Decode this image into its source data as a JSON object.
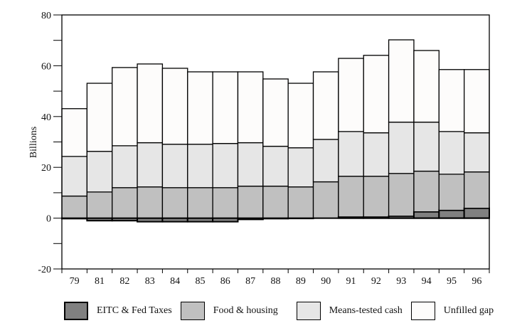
{
  "chart_data": {
    "type": "bar",
    "stacked": true,
    "title": "",
    "xlabel": "",
    "ylabel": "Billions",
    "ylim": [
      -20,
      80
    ],
    "yticks": [
      -20,
      0,
      20,
      40,
      60,
      80
    ],
    "yminor_step": 10,
    "grid": false,
    "legend_position": "bottom",
    "categories": [
      "79",
      "81",
      "82",
      "83",
      "84",
      "85",
      "86",
      "87",
      "88",
      "89",
      "90",
      "91",
      "92",
      "93",
      "94",
      "95",
      "96"
    ],
    "series": [
      {
        "name": "EITC & Fed Taxes",
        "color": "#808080",
        "values": [
          -0.2,
          -1.0,
          -1.0,
          -1.4,
          -1.4,
          -1.4,
          -1.4,
          -0.5,
          -0.2,
          -0.1,
          0.0,
          0.5,
          0.5,
          0.8,
          2.5,
          3.1,
          3.9
        ]
      },
      {
        "name": "Food & housing",
        "color": "#c0c0c0",
        "values": [
          8.7,
          10.3,
          12.0,
          12.3,
          12.0,
          12.0,
          12.0,
          12.6,
          12.6,
          12.3,
          14.3,
          16.0,
          16.0,
          16.8,
          16.0,
          14.2,
          14.3
        ]
      },
      {
        "name": "Means-tested cash",
        "color": "#e6e6e6",
        "values": [
          15.6,
          16.0,
          16.5,
          17.4,
          17.1,
          17.1,
          17.4,
          17.1,
          15.7,
          15.4,
          16.7,
          17.6,
          17.1,
          20.2,
          19.3,
          16.8,
          15.4
        ]
      },
      {
        "name": "Unfilled gap",
        "color": "#fdfcfb",
        "values": [
          18.8,
          26.8,
          30.8,
          31.0,
          29.9,
          28.5,
          28.2,
          27.9,
          26.5,
          25.4,
          26.6,
          28.8,
          30.5,
          32.4,
          28.2,
          24.4,
          24.9
        ]
      }
    ]
  }
}
